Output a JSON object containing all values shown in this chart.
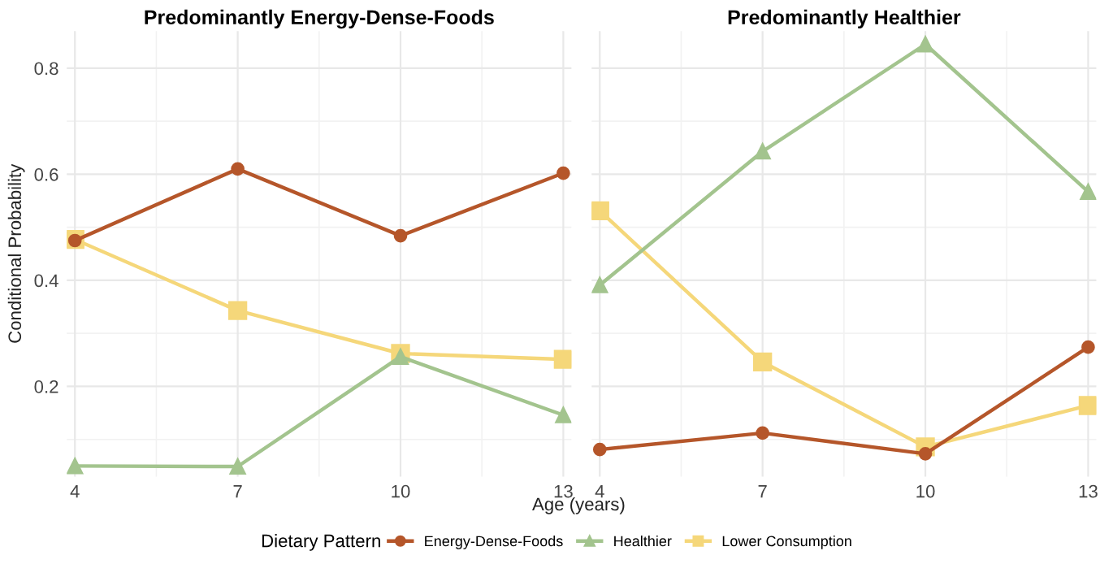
{
  "chart_data": [
    {
      "type": "line",
      "title": "Predominantly Energy-Dense-Foods",
      "xlabel": "Age (years)",
      "ylabel": "Conditional Probability",
      "legend_title": "Dietary Pattern",
      "legend": "bottom",
      "x": [
        4,
        7,
        10,
        13
      ],
      "xlim": [
        3.85,
        13.15
      ],
      "xticks": [
        4,
        7,
        10,
        13
      ],
      "ylim": [
        0.03,
        0.87
      ],
      "yticks": [
        0.2,
        0.4,
        0.6,
        0.8
      ],
      "grid": true,
      "series": [
        {
          "name": "Energy-Dense-Foods",
          "color": "#b5562a",
          "marker": "circle",
          "values": [
            0.475,
            0.61,
            0.484,
            0.602
          ]
        },
        {
          "name": "Healthier",
          "color": "#a3c48e",
          "marker": "triangle",
          "values": [
            0.05,
            0.049,
            0.256,
            0.146
          ]
        },
        {
          "name": "Lower Consumption",
          "color": "#f5d77a",
          "marker": "square",
          "values": [
            0.477,
            0.343,
            0.262,
            0.251
          ]
        }
      ]
    },
    {
      "type": "line",
      "title": "Predominantly Healthier",
      "x": [
        4,
        7,
        10,
        13
      ],
      "xlim": [
        3.85,
        13.15
      ],
      "xticks": [
        4,
        7,
        10,
        13
      ],
      "ylim": [
        0.03,
        0.87
      ],
      "yticks": [
        0.2,
        0.4,
        0.6,
        0.8
      ],
      "tick_labels": "x",
      "grid": true,
      "series": [
        {
          "name": "Energy-Dense-Foods",
          "color": "#b5562a",
          "marker": "circle",
          "values": [
            0.081,
            0.112,
            0.073,
            0.274
          ]
        },
        {
          "name": "Healthier",
          "color": "#a3c48e",
          "marker": "triangle",
          "values": [
            0.391,
            0.643,
            0.845,
            0.567
          ]
        },
        {
          "name": "Lower Consumption",
          "color": "#f5d77a",
          "marker": "square",
          "values": [
            0.531,
            0.246,
            0.086,
            0.164
          ]
        }
      ]
    }
  ]
}
